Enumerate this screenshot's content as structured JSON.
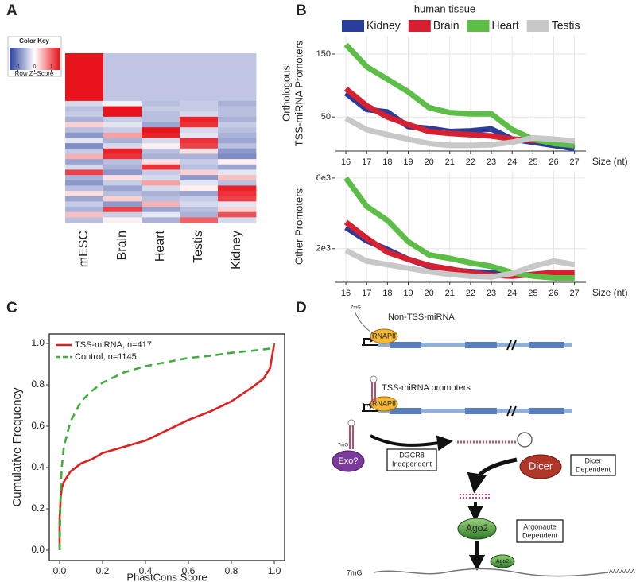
{
  "panel_labels": [
    "A",
    "B",
    "C",
    "D"
  ],
  "chart_data": [
    {
      "type": "heatmap",
      "categories": [
        "mESC",
        "Brain",
        "Heart",
        "Testis",
        "Kidney"
      ],
      "key_title": "Color Key",
      "zlabel": "Row Z−Score",
      "zlim": [
        -1.5,
        1.5
      ],
      "zticks": [
        -1,
        0,
        1
      ],
      "colorscale": {
        "low": "#2a3f9e",
        "mid": "#ffffff",
        "high": "#e8131b"
      },
      "values": [
        [
          1.5,
          -0.45,
          -0.45,
          -0.45,
          -0.45
        ],
        [
          1.5,
          -0.45,
          -0.45,
          -0.45,
          -0.45
        ],
        [
          1.5,
          -0.45,
          -0.45,
          -0.45,
          -0.45
        ],
        [
          1.5,
          -0.45,
          -0.45,
          -0.45,
          -0.45
        ],
        [
          1.5,
          -0.45,
          -0.45,
          -0.45,
          -0.45
        ],
        [
          1.5,
          -0.45,
          -0.45,
          -0.45,
          -0.45
        ],
        [
          1.5,
          -0.45,
          -0.45,
          -0.45,
          -0.45
        ],
        [
          1.5,
          -0.45,
          -0.45,
          -0.45,
          -0.45
        ],
        [
          1.5,
          -0.45,
          -0.45,
          -0.45,
          -0.45
        ],
        [
          -0.3,
          -0.1,
          -0.5,
          -0.4,
          -0.6
        ],
        [
          -0.5,
          1.5,
          -0.4,
          -0.4,
          -0.5
        ],
        [
          -0.4,
          1.5,
          -0.5,
          -0.3,
          -0.5
        ],
        [
          -0.6,
          -0.4,
          -0.5,
          1.4,
          -0.6
        ],
        [
          0.3,
          -0.2,
          -0.7,
          1.3,
          -0.4
        ],
        [
          -0.5,
          -0.4,
          1.5,
          -0.3,
          -0.5
        ],
        [
          -0.8,
          0.6,
          1.4,
          -0.2,
          -0.6
        ],
        [
          -0.2,
          -0.6,
          -0.3,
          1.3,
          -0.7
        ],
        [
          -0.9,
          -0.3,
          0.1,
          1.2,
          -0.5
        ],
        [
          -0.4,
          1.4,
          -0.5,
          0.2,
          -0.8
        ],
        [
          0.5,
          1.3,
          -0.6,
          -0.6,
          -0.9
        ],
        [
          -0.7,
          -0.5,
          0.2,
          -0.4,
          0.1
        ],
        [
          -0.3,
          -0.6,
          1.3,
          -0.5,
          -0.7
        ],
        [
          1.2,
          -0.8,
          -0.4,
          0.3,
          -0.2
        ],
        [
          -0.6,
          0.2,
          -0.3,
          -0.8,
          0.4
        ],
        [
          -0.8,
          -0.4,
          0.6,
          -0.2,
          -0.5
        ],
        [
          -0.5,
          -0.7,
          -0.3,
          0.1,
          1.4
        ],
        [
          0.2,
          -0.5,
          -0.6,
          -0.7,
          1.3
        ],
        [
          -0.7,
          0.3,
          -0.5,
          -0.4,
          1.2
        ],
        [
          -0.4,
          -0.8,
          0.5,
          -0.3,
          -0.2
        ],
        [
          -0.6,
          1.2,
          -0.7,
          -0.5,
          0.3
        ],
        [
          0.4,
          -0.4,
          -0.2,
          -0.6,
          1.1
        ],
        [
          -0.5,
          0.1,
          -0.6,
          1.0,
          -0.3
        ]
      ]
    },
    {
      "type": "line",
      "legend_title": "human tissue",
      "legend": "top",
      "ylabel": [
        "Orthologous",
        "TSS-miRNA Promoters"
      ],
      "xlabel": "Size (nt)",
      "grid": true,
      "x": [
        16,
        17,
        18,
        19,
        20,
        21,
        22,
        23,
        24,
        25,
        26,
        27
      ],
      "xlim": [
        15.5,
        27.55
      ],
      "xticks": [
        16,
        17,
        18,
        19,
        20,
        21,
        22,
        23,
        24,
        25,
        26,
        27
      ],
      "ylim": [
        -4,
        179
      ],
      "yticks": [
        50,
        150
      ],
      "series": [
        {
          "name": "Kidney",
          "color": "#2b3d9b",
          "values": [
            88,
            62,
            58,
            35,
            32,
            27,
            28,
            31,
            15,
            10,
            5,
            0
          ]
        },
        {
          "name": "Brain",
          "color": "#d42030",
          "values": [
            95,
            68,
            50,
            38,
            27,
            24,
            22,
            20,
            15,
            13,
            10,
            8
          ]
        },
        {
          "name": "Heart",
          "color": "#5cbd47",
          "values": [
            165,
            130,
            110,
            90,
            65,
            57,
            55,
            55,
            30,
            15,
            8,
            5
          ]
        },
        {
          "name": "Testis",
          "color": "#c8c8c8",
          "values": [
            48,
            30,
            22,
            15,
            8,
            5,
            5,
            6,
            10,
            17,
            15,
            12
          ]
        }
      ]
    },
    {
      "type": "line",
      "ylabel": [
        "Other Promoters"
      ],
      "xlabel": "Size (nt)",
      "grid": true,
      "x": [
        16,
        17,
        18,
        19,
        20,
        21,
        22,
        23,
        24,
        25,
        26,
        27
      ],
      "xlim": [
        15.5,
        27.55
      ],
      "xticks": [
        16,
        17,
        18,
        19,
        20,
        21,
        22,
        23,
        24,
        25,
        26,
        27
      ],
      "ylim": [
        100,
        6400
      ],
      "yticks": [
        {
          "value": 2000,
          "label": "2e3"
        },
        {
          "value": 6000,
          "label": "6e3"
        }
      ],
      "series": [
        {
          "color": "#2b3d9b",
          "values": [
            3200,
            2450,
            1950,
            1400,
            1000,
            800,
            700,
            650,
            550,
            480,
            430,
            400
          ]
        },
        {
          "color": "#d42030",
          "values": [
            3500,
            2600,
            1800,
            1400,
            1050,
            850,
            650,
            500,
            450,
            550,
            650,
            650
          ]
        },
        {
          "color": "#5cbd47",
          "values": [
            6000,
            4400,
            3600,
            2400,
            1650,
            1450,
            1200,
            1000,
            650,
            450,
            350,
            350
          ]
        },
        {
          "color": "#c8c8c8",
          "values": [
            1900,
            1300,
            1100,
            900,
            700,
            550,
            450,
            400,
            600,
            1000,
            1300,
            1100
          ]
        }
      ]
    },
    {
      "type": "line",
      "legend": "upper left",
      "xlabel": "PhastCons Score",
      "ylabel": [
        "Cumulative Frequency"
      ],
      "grid": false,
      "xlim": [
        -0.048,
        1.048
      ],
      "ylim": [
        -0.05,
        1.046
      ],
      "xticks": [
        {
          "value": 0,
          "label": "0.0"
        },
        {
          "value": 0.2,
          "label": "0.2"
        },
        {
          "value": 0.4,
          "label": "0.4"
        },
        {
          "value": 0.6,
          "label": "0.6"
        },
        {
          "value": 0.8,
          "label": "0.8"
        },
        {
          "value": 1,
          "label": "1.0"
        }
      ],
      "yticks": [
        {
          "value": 0,
          "label": "0.0"
        },
        {
          "value": 0.2,
          "label": "0.2"
        },
        {
          "value": 0.4,
          "label": "0.4"
        },
        {
          "value": 0.6,
          "label": "0.6"
        },
        {
          "value": 0.8,
          "label": "0.8"
        },
        {
          "value": 1,
          "label": "1.0"
        }
      ],
      "series": [
        {
          "name": "TSS-miRNA, n=417",
          "color": "#e02020",
          "style": "solid",
          "x": [
            0,
            0,
            0.005,
            0.01,
            0.02,
            0.05,
            0.1,
            0.15,
            0.2,
            0.3,
            0.4,
            0.5,
            0.6,
            0.7,
            0.8,
            0.9,
            0.95,
            0.98,
            1.0
          ],
          "values": [
            0,
            0.15,
            0.25,
            0.3,
            0.33,
            0.38,
            0.42,
            0.44,
            0.47,
            0.5,
            0.53,
            0.58,
            0.63,
            0.67,
            0.72,
            0.79,
            0.83,
            0.88,
            1.0
          ]
        },
        {
          "name": "Control, n=1145",
          "color": "#3fae3a",
          "style": "dashed",
          "x": [
            0,
            0.005,
            0.01,
            0.02,
            0.05,
            0.1,
            0.15,
            0.2,
            0.3,
            0.4,
            0.5,
            0.6,
            0.7,
            0.8,
            0.9,
            0.98,
            1.0
          ],
          "values": [
            0,
            0.3,
            0.4,
            0.5,
            0.62,
            0.72,
            0.77,
            0.81,
            0.86,
            0.89,
            0.91,
            0.93,
            0.94,
            0.955,
            0.965,
            0.975,
            1.0
          ]
        }
      ]
    }
  ],
  "diagram": {
    "non_tss_label": "Non-TSS-miRNA",
    "tss_label": "TSS-miRNA promoters",
    "polymerase": [
      "RNAPII",
      "RNAPII"
    ],
    "cap": [
      "7mG",
      "7mG",
      "7mG",
      "7mG"
    ],
    "exo": "Exo?",
    "dgcr8": [
      "DGCR8",
      "Independent"
    ],
    "dicer": "Dicer",
    "dicer_box": [
      "Dicer",
      "Dependent"
    ],
    "ago": [
      "Ago2",
      "Ago2"
    ],
    "ago_box": [
      "Argonaute",
      "Dependent"
    ],
    "polya": "AAAAAAA"
  }
}
